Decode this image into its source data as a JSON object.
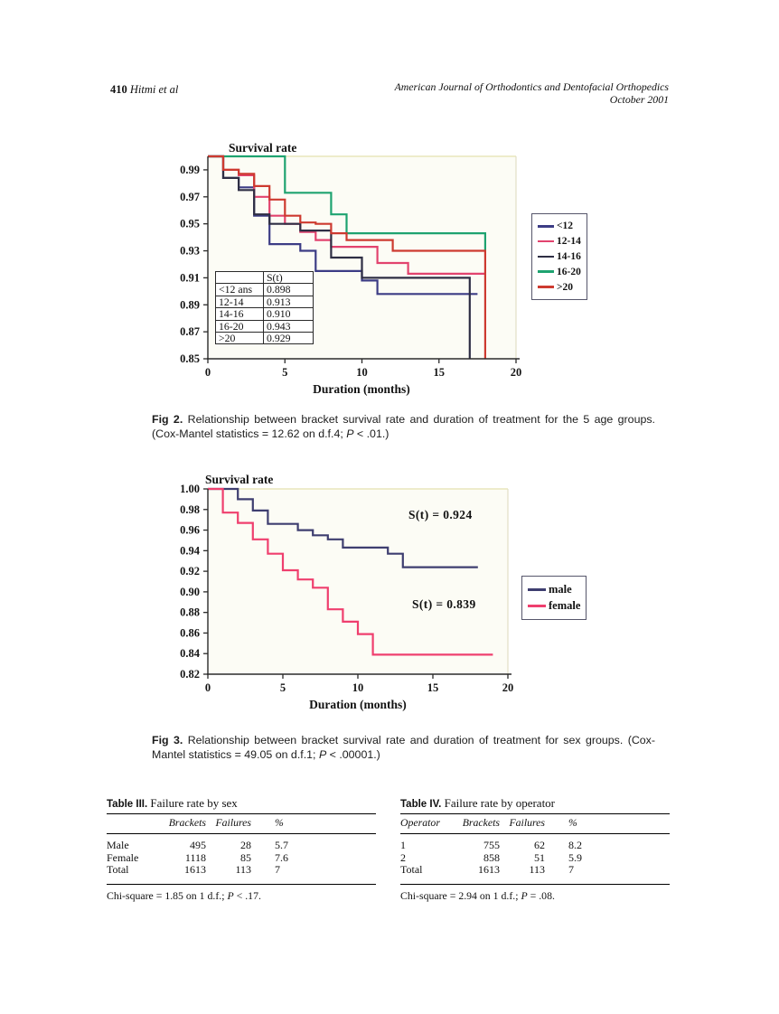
{
  "page_header": {
    "page_number": "410",
    "authors": "Hitmi et al",
    "journal_line1": "American Journal of Orthodontics and Dentofacial Orthopedics",
    "journal_line2": "October 2001"
  },
  "fig2_caption": {
    "label": "Fig 2.",
    "body": "Relationship between bracket survival rate and duration of treatment for the 5 age groups. (Cox-Mantel statistics = 12.62 on d.f.4; ",
    "p": "P",
    "tail": " < .01.)"
  },
  "fig3_caption": {
    "label": "Fig 3.",
    "body": "Relationship between bracket survival rate and duration of treatment for sex groups. (Cox-Mantel statistics = 49.05 on d.f.1; ",
    "p": "P",
    "tail": " < .00001.)"
  },
  "tables": [
    {
      "label": "Table III.",
      "title": "Failure rate by sex",
      "headers": [
        "",
        "Brackets",
        "Failures",
        "%"
      ],
      "rows": [
        [
          "Male",
          "495",
          "28",
          "5.7"
        ],
        [
          "Female",
          "1118",
          "85",
          "7.6"
        ],
        [
          "Total",
          "1613",
          "113",
          "7"
        ]
      ],
      "footnote_pre": "Chi-square = 1.85 on 1 d.f.; ",
      "footnote_p": "P",
      "footnote_tail": " < .17."
    },
    {
      "label": "Table IV.",
      "title": "Failure rate by operator",
      "headers": [
        "Operator",
        "Brackets",
        "Failures",
        "%"
      ],
      "rows": [
        [
          "1",
          "755",
          "62",
          "8.2"
        ],
        [
          "2",
          "858",
          "51",
          "5.9"
        ],
        [
          "Total",
          "1613",
          "113",
          "7"
        ]
      ],
      "footnote_pre": "Chi-square = 2.94 on 1 d.f.; ",
      "footnote_p": "P",
      "footnote_tail": " = .08."
    }
  ],
  "chart_data": [
    {
      "type": "line",
      "step": true,
      "title": "Survival rate",
      "xlabel": "Duration (months)",
      "ylabel": "",
      "xlim": [
        0,
        20
      ],
      "ylim": [
        0.85,
        1.0
      ],
      "x_ticks": [
        "0",
        "5",
        "10",
        "15",
        "20"
      ],
      "y_ticks": [
        "0.99",
        "0.97",
        "0.95",
        "0.93",
        "0.91",
        "0.89",
        "0.87",
        "0.85"
      ],
      "grid": false,
      "legend_position": "right",
      "series": [
        {
          "name": "<12",
          "color": "#3c3c85",
          "final_survival": 0.898,
          "points": [
            [
              0,
              1.0
            ],
            [
              1,
              0.984
            ],
            [
              2,
              0.977
            ],
            [
              3,
              0.956
            ],
            [
              4,
              0.935
            ],
            [
              6,
              0.93
            ],
            [
              7,
              0.915
            ],
            [
              10,
              0.908
            ],
            [
              11,
              0.898
            ],
            [
              17.5,
              0.898
            ]
          ]
        },
        {
          "name": "12-14",
          "color": "#e2436e",
          "final_survival": 0.913,
          "points": [
            [
              0,
              1.0
            ],
            [
              1,
              0.99
            ],
            [
              2,
              0.986
            ],
            [
              3,
              0.97
            ],
            [
              4,
              0.956
            ],
            [
              5,
              0.95
            ],
            [
              6,
              0.944
            ],
            [
              7,
              0.938
            ],
            [
              8,
              0.933
            ],
            [
              11,
              0.921
            ],
            [
              13,
              0.913
            ],
            [
              18,
              0.913
            ]
          ]
        },
        {
          "name": "14-16",
          "color": "#2e2e44",
          "final_survival": 0.91,
          "points": [
            [
              0,
              1.0
            ],
            [
              1,
              0.984
            ],
            [
              2,
              0.975
            ],
            [
              3,
              0.957
            ],
            [
              4,
              0.95
            ],
            [
              6,
              0.945
            ],
            [
              8,
              0.925
            ],
            [
              10,
              0.91
            ],
            [
              17,
              0.91
            ],
            [
              17,
              0.85
            ]
          ]
        },
        {
          "name": "16-20",
          "color": "#1ea370",
          "final_survival": 0.943,
          "points": [
            [
              0,
              1.0
            ],
            [
              5,
              0.973
            ],
            [
              8,
              0.957
            ],
            [
              9,
              0.943
            ],
            [
              18,
              0.943
            ],
            [
              18,
              0.93
            ]
          ]
        },
        {
          "name": ">20",
          "color": "#cd3a30",
          "final_survival": 0.929,
          "points": [
            [
              0,
              1.0
            ],
            [
              1,
              0.99
            ],
            [
              2,
              0.987
            ],
            [
              3,
              0.978
            ],
            [
              4,
              0.968
            ],
            [
              5,
              0.956
            ],
            [
              6,
              0.951
            ],
            [
              7,
              0.95
            ],
            [
              8,
              0.943
            ],
            [
              9,
              0.938
            ],
            [
              12,
              0.93
            ],
            [
              18,
              0.93
            ],
            [
              18,
              0.85
            ]
          ]
        }
      ],
      "inner_table": {
        "header": [
          "",
          "S(t)"
        ],
        "rows": [
          [
            "<12 ans",
            "0.898"
          ],
          [
            "12-14",
            "0.913"
          ],
          [
            "14-16",
            "0.910"
          ],
          [
            "16-20",
            "0.943"
          ],
          [
            ">20",
            "0.929"
          ]
        ]
      }
    },
    {
      "type": "line",
      "step": true,
      "title": "Survival rate",
      "xlabel": "Duration (months)",
      "ylabel": "",
      "xlim": [
        0,
        20
      ],
      "ylim": [
        0.82,
        1.0
      ],
      "x_ticks": [
        "0",
        "5",
        "10",
        "15",
        "20"
      ],
      "y_ticks": [
        "1.00",
        "0.98",
        "0.96",
        "0.94",
        "0.92",
        "0.90",
        "0.88",
        "0.86",
        "0.84",
        "0.82"
      ],
      "grid": false,
      "legend_position": "right",
      "annotations": [
        {
          "text": "S(t) = 0.924"
        },
        {
          "text": "S(t) = 0.839"
        }
      ],
      "series": [
        {
          "name": "male",
          "color": "#3e3e70",
          "final_survival": 0.924,
          "points": [
            [
              0,
              1.0
            ],
            [
              2,
              0.99
            ],
            [
              3,
              0.979
            ],
            [
              4,
              0.966
            ],
            [
              6,
              0.96
            ],
            [
              7,
              0.955
            ],
            [
              8,
              0.951
            ],
            [
              9,
              0.943
            ],
            [
              12,
              0.937
            ],
            [
              13,
              0.924
            ],
            [
              18,
              0.924
            ]
          ]
        },
        {
          "name": "female",
          "color": "#ef3f6e",
          "final_survival": 0.839,
          "points": [
            [
              0,
              1.0
            ],
            [
              1,
              0.977
            ],
            [
              2,
              0.967
            ],
            [
              3,
              0.951
            ],
            [
              4,
              0.937
            ],
            [
              5,
              0.921
            ],
            [
              6,
              0.912
            ],
            [
              7,
              0.904
            ],
            [
              8,
              0.883
            ],
            [
              9,
              0.871
            ],
            [
              10,
              0.859
            ],
            [
              11,
              0.839
            ],
            [
              19,
              0.839
            ]
          ]
        }
      ]
    }
  ]
}
